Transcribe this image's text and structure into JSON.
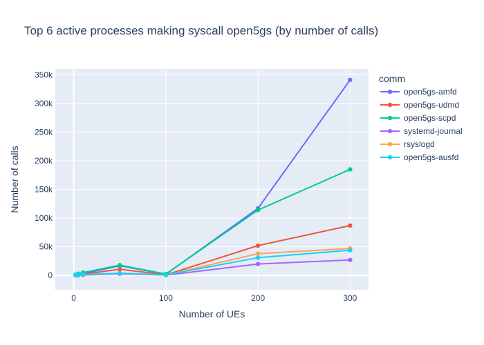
{
  "chart_data": {
    "type": "line",
    "title": "Top 6 active processes making syscall open5gs (by number of calls)",
    "xlabel": "Number of UEs",
    "ylabel": "Number of calls",
    "xlim": [
      -20,
      320
    ],
    "ylim": [
      -25000,
      360000
    ],
    "x_ticks": [
      0,
      100,
      200,
      300
    ],
    "y_ticks": [
      0,
      50000,
      100000,
      150000,
      200000,
      250000,
      300000,
      350000
    ],
    "y_tick_labels": [
      "0",
      "50k",
      "100k",
      "150k",
      "200k",
      "250k",
      "300k",
      "350k"
    ],
    "grid": true,
    "legend_title": "comm",
    "legend_position": "right",
    "x": [
      2,
      5,
      10,
      50,
      100,
      200,
      300
    ],
    "series": [
      {
        "name": "open5gs-amfd",
        "color": "#636efa",
        "values": [
          1000,
          2000,
          3000,
          17000,
          2000,
          117000,
          341000
        ]
      },
      {
        "name": "open5gs-udmd",
        "color": "#ef553b",
        "values": [
          500,
          1000,
          2000,
          11000,
          1000,
          52000,
          87000
        ]
      },
      {
        "name": "open5gs-scpd",
        "color": "#00cc96",
        "values": [
          1500,
          3000,
          5000,
          18000,
          2500,
          114000,
          185000
        ]
      },
      {
        "name": "systemd-journal",
        "color": "#ab63fa",
        "values": [
          200,
          400,
          600,
          3000,
          500,
          20000,
          27000
        ]
      },
      {
        "name": "rsyslogd",
        "color": "#ffa15a",
        "values": [
          300,
          600,
          1000,
          4000,
          700,
          38000,
          47000
        ]
      },
      {
        "name": "open5gs-ausfd",
        "color": "#19d3f3",
        "values": [
          400,
          800,
          1500,
          4000,
          1000,
          31000,
          44000
        ]
      }
    ]
  }
}
